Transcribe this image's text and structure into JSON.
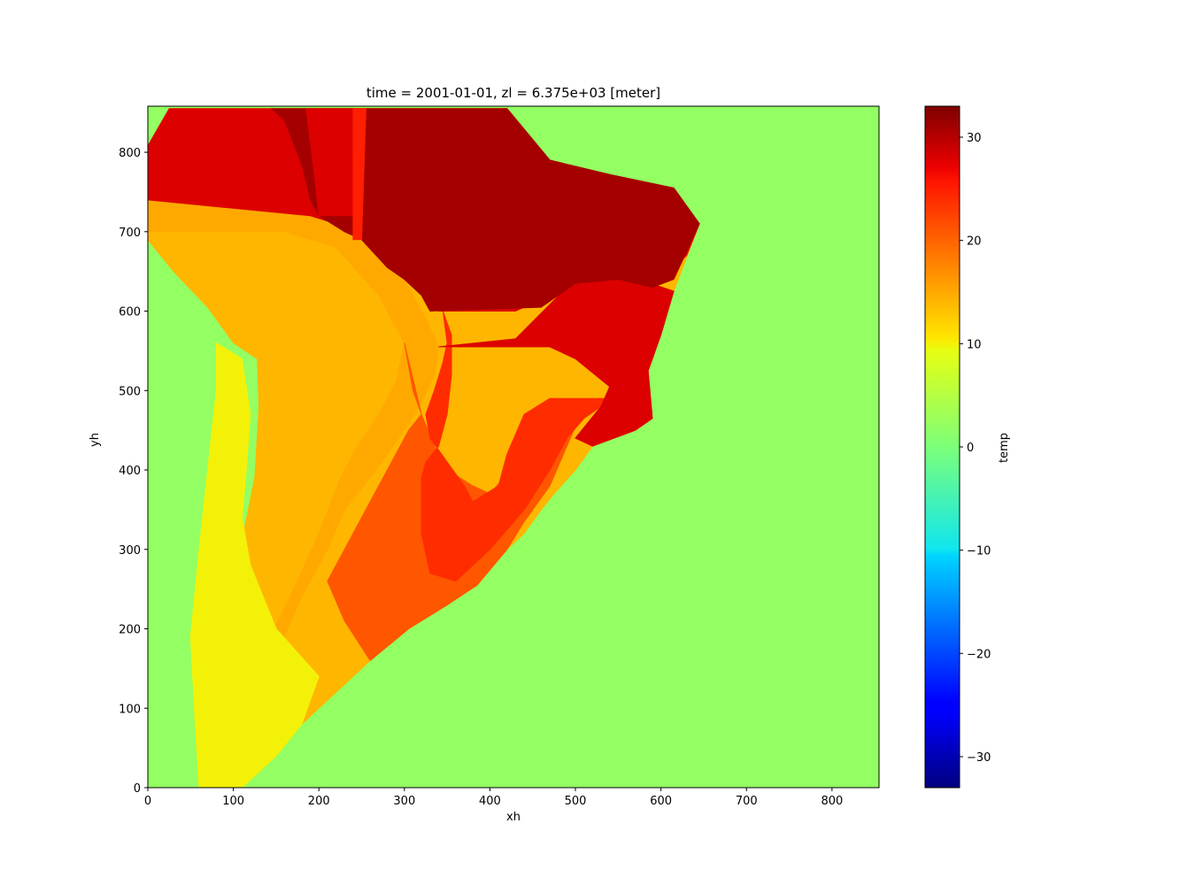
{
  "chart_data": {
    "type": "heatmap",
    "title": "time = 2001-01-01, zl = 6.375e+03 [meter]",
    "xlabel": "xh",
    "ylabel": "yh",
    "xlim": [
      0,
      855
    ],
    "ylim": [
      0,
      858
    ],
    "xticks": [
      0,
      100,
      200,
      300,
      400,
      500,
      600,
      700,
      800
    ],
    "yticks": [
      0,
      100,
      200,
      300,
      400,
      500,
      600,
      700,
      800
    ],
    "colorbar": {
      "label": "temp",
      "colormap": "jet",
      "range": [
        -33,
        33
      ],
      "ticks": [
        -30,
        -20,
        -10,
        0,
        10,
        20,
        30
      ]
    },
    "ocean_value": 2,
    "regions": [
      {
        "name": "continent_outline",
        "value": 14,
        "polygon": [
          [
            0,
            808
          ],
          [
            25,
            855
          ],
          [
            420,
            855
          ],
          [
            470,
            790
          ],
          [
            540,
            772
          ],
          [
            615,
            755
          ],
          [
            645,
            710
          ],
          [
            615,
            625
          ],
          [
            585,
            575
          ],
          [
            592,
            545
          ],
          [
            580,
            510
          ],
          [
            590,
            465
          ],
          [
            570,
            450
          ],
          [
            520,
            430
          ],
          [
            500,
            400
          ],
          [
            475,
            370
          ],
          [
            460,
            350
          ],
          [
            440,
            320
          ],
          [
            420,
            300
          ],
          [
            385,
            255
          ],
          [
            350,
            230
          ],
          [
            305,
            200
          ],
          [
            260,
            160
          ],
          [
            220,
            120
          ],
          [
            180,
            80
          ],
          [
            150,
            40
          ],
          [
            110,
            0
          ],
          [
            60,
            0
          ],
          [
            55,
            90
          ],
          [
            65,
            190
          ],
          [
            90,
            240
          ],
          [
            110,
            310
          ],
          [
            125,
            390
          ],
          [
            130,
            480
          ],
          [
            128,
            540
          ],
          [
            100,
            560
          ],
          [
            70,
            605
          ],
          [
            30,
            650
          ],
          [
            0,
            690
          ]
        ]
      },
      {
        "name": "central_band",
        "value": 15,
        "polygon": [
          [
            0,
            740
          ],
          [
            195,
            720
          ],
          [
            260,
            680
          ],
          [
            300,
            640
          ],
          [
            325,
            590
          ],
          [
            340,
            555
          ],
          [
            335,
            520
          ],
          [
            318,
            480
          ],
          [
            300,
            450
          ],
          [
            280,
            420
          ],
          [
            260,
            390
          ],
          [
            230,
            350
          ],
          [
            210,
            300
          ],
          [
            180,
            240
          ],
          [
            155,
            180
          ],
          [
            150,
            205
          ],
          [
            175,
            260
          ],
          [
            200,
            320
          ],
          [
            225,
            390
          ],
          [
            245,
            430
          ],
          [
            270,
            470
          ],
          [
            290,
            510
          ],
          [
            300,
            560
          ],
          [
            270,
            620
          ],
          [
            220,
            680
          ],
          [
            160,
            700
          ],
          [
            0,
            700
          ]
        ]
      },
      {
        "name": "western_strip",
        "value": 10,
        "polygon": [
          [
            110,
            0
          ],
          [
            150,
            40
          ],
          [
            180,
            80
          ],
          [
            200,
            140
          ],
          [
            150,
            200
          ],
          [
            120,
            280
          ],
          [
            110,
            340
          ],
          [
            115,
            400
          ],
          [
            120,
            470
          ],
          [
            110,
            540
          ],
          [
            80,
            560
          ],
          [
            80,
            500
          ],
          [
            70,
            400
          ],
          [
            60,
            300
          ],
          [
            50,
            190
          ],
          [
            55,
            90
          ],
          [
            60,
            0
          ]
        ]
      },
      {
        "name": "southeast_block",
        "value": 21,
        "polygon": [
          [
            300,
            560
          ],
          [
            310,
            500
          ],
          [
            320,
            470
          ],
          [
            335,
            430
          ],
          [
            350,
            400
          ],
          [
            380,
            380
          ],
          [
            400,
            370
          ],
          [
            420,
            395
          ],
          [
            450,
            430
          ],
          [
            470,
            455
          ],
          [
            500,
            455
          ],
          [
            470,
            380
          ],
          [
            440,
            335
          ],
          [
            420,
            300
          ],
          [
            385,
            255
          ],
          [
            350,
            230
          ],
          [
            305,
            200
          ],
          [
            260,
            160
          ],
          [
            230,
            210
          ],
          [
            210,
            260
          ],
          [
            230,
            300
          ],
          [
            250,
            340
          ],
          [
            270,
            380
          ],
          [
            290,
            420
          ],
          [
            305,
            450
          ],
          [
            320,
            470
          ]
        ]
      },
      {
        "name": "east_plateau",
        "value": 24,
        "polygon": [
          [
            345,
            600
          ],
          [
            350,
            560
          ],
          [
            345,
            535
          ],
          [
            335,
            500
          ],
          [
            325,
            470
          ],
          [
            330,
            440
          ],
          [
            350,
            410
          ],
          [
            370,
            380
          ],
          [
            380,
            360
          ],
          [
            410,
            380
          ],
          [
            420,
            420
          ],
          [
            440,
            470
          ],
          [
            470,
            490
          ],
          [
            520,
            490
          ],
          [
            540,
            490
          ],
          [
            530,
            480
          ],
          [
            510,
            465
          ],
          [
            490,
            440
          ],
          [
            470,
            400
          ],
          [
            440,
            350
          ],
          [
            400,
            300
          ],
          [
            360,
            260
          ],
          [
            330,
            270
          ],
          [
            320,
            320
          ],
          [
            320,
            390
          ],
          [
            325,
            410
          ],
          [
            340,
            430
          ],
          [
            350,
            470
          ],
          [
            355,
            520
          ],
          [
            355,
            570
          ]
        ]
      },
      {
        "name": "northeast_band",
        "value": 28,
        "polygon": [
          [
            340,
            555
          ],
          [
            430,
            565
          ],
          [
            490,
            630
          ],
          [
            560,
            645
          ],
          [
            615,
            625
          ],
          [
            600,
            570
          ],
          [
            585,
            525
          ],
          [
            590,
            465
          ],
          [
            570,
            450
          ],
          [
            520,
            430
          ],
          [
            500,
            440
          ],
          [
            530,
            480
          ],
          [
            540,
            505
          ],
          [
            500,
            540
          ],
          [
            470,
            555
          ],
          [
            420,
            555
          ]
        ]
      },
      {
        "name": "northwest_block",
        "value": 28,
        "polygon": [
          [
            0,
            808
          ],
          [
            25,
            855
          ],
          [
            420,
            855
          ],
          [
            470,
            790
          ],
          [
            540,
            772
          ],
          [
            615,
            755
          ],
          [
            645,
            710
          ],
          [
            630,
            670
          ],
          [
            600,
            640
          ],
          [
            560,
            645
          ],
          [
            490,
            630
          ],
          [
            430,
            600
          ],
          [
            340,
            600
          ],
          [
            320,
            640
          ],
          [
            280,
            660
          ],
          [
            250,
            700
          ],
          [
            190,
            720
          ],
          [
            0,
            740
          ]
        ]
      },
      {
        "name": "north_core",
        "value": 31,
        "polygon": [
          [
            145,
            855
          ],
          [
            420,
            855
          ],
          [
            470,
            790
          ],
          [
            540,
            772
          ],
          [
            615,
            755
          ],
          [
            645,
            710
          ],
          [
            615,
            640
          ],
          [
            590,
            630
          ],
          [
            550,
            640
          ],
          [
            500,
            635
          ],
          [
            460,
            605
          ],
          [
            330,
            600
          ],
          [
            320,
            620
          ],
          [
            300,
            640
          ],
          [
            280,
            655
          ],
          [
            250,
            690
          ],
          [
            230,
            700
          ],
          [
            200,
            720
          ],
          [
            190,
            740
          ],
          [
            180,
            785
          ],
          [
            160,
            840
          ]
        ]
      },
      {
        "name": "amazon_column",
        "value": 28,
        "polygon": [
          [
            185,
            855
          ],
          [
            245,
            855
          ],
          [
            240,
            720
          ],
          [
            200,
            720
          ],
          [
            195,
            770
          ]
        ]
      },
      {
        "name": "river_stripe",
        "value": 25,
        "polygon": [
          [
            240,
            855
          ],
          [
            255,
            855
          ],
          [
            250,
            690
          ],
          [
            240,
            690
          ]
        ]
      }
    ]
  }
}
